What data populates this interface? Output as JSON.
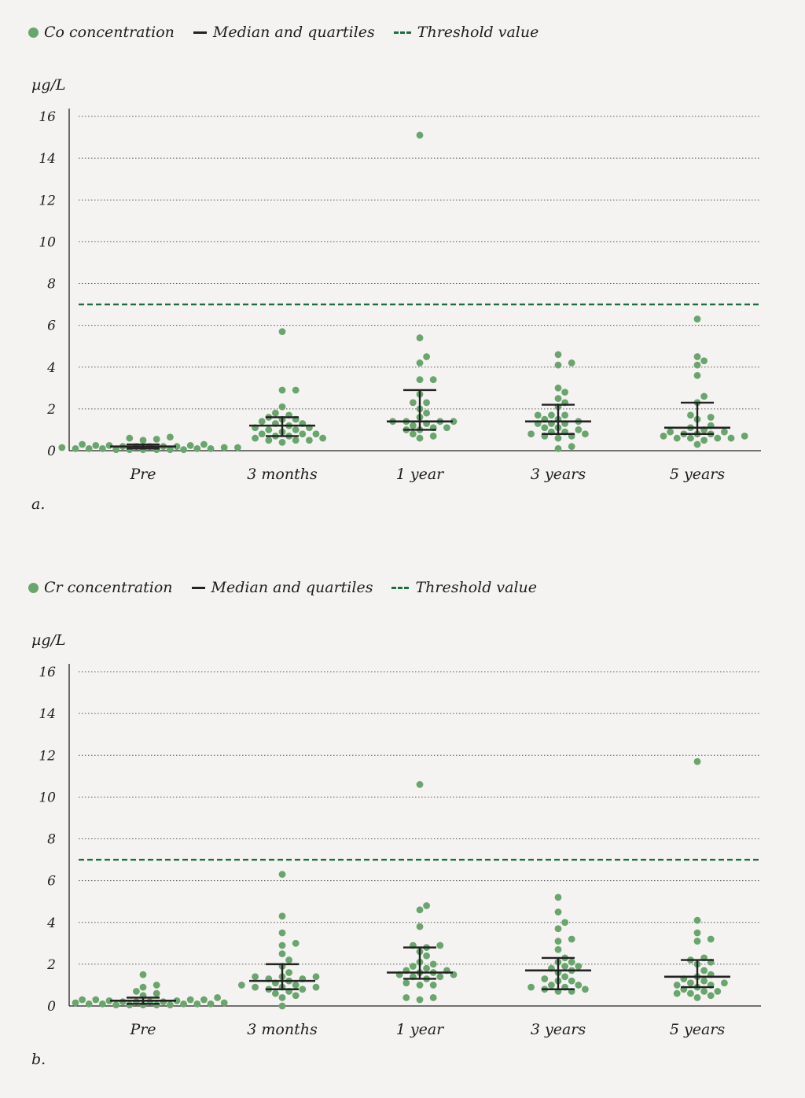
{
  "colors": {
    "dot": "#6aa56e",
    "median": "#222222",
    "threshold": "#1b6e3e",
    "grid": "#555555",
    "background": "#f4f3f1"
  },
  "chart_data": [
    {
      "type": "scatter",
      "panel_label": "a.",
      "legend": {
        "points": "Co concentration",
        "median": "Median and quartiles",
        "threshold": "Threshold value"
      },
      "ylabel": "µg/L",
      "ylim": [
        0,
        16
      ],
      "yticks": [
        "0",
        "2",
        "4",
        "6",
        "8",
        "10",
        "12",
        "14",
        "16"
      ],
      "threshold": 7,
      "categories": [
        "Pre",
        "3 months",
        "1 year",
        "3 years",
        "5 years"
      ],
      "groups": [
        {
          "name": "Pre",
          "median": 0.2,
          "q1": 0.1,
          "q3": 0.3,
          "points": [
            0.6,
            0.65,
            0.55,
            0.5,
            0.3,
            0.3,
            0.25,
            0.25,
            0.25,
            0.2,
            0.2,
            0.2,
            0.2,
            0.2,
            0.15,
            0.15,
            0.15,
            0.1,
            0.1,
            0.1,
            0.1,
            0.1,
            0.05,
            0.05,
            0.05,
            0.05,
            0.05,
            0.05
          ]
        },
        {
          "name": "3 months",
          "median": 1.2,
          "q1": 0.7,
          "q3": 1.6,
          "points": [
            5.7,
            2.9,
            2.9,
            2.1,
            1.8,
            1.7,
            1.6,
            1.5,
            1.5,
            1.4,
            1.3,
            1.3,
            1.2,
            1.1,
            1.1,
            1.0,
            1.0,
            0.9,
            0.8,
            0.8,
            0.8,
            0.7,
            0.7,
            0.6,
            0.6,
            0.5,
            0.5,
            0.5,
            0.4
          ]
        },
        {
          "name": "1 year",
          "median": 1.4,
          "q1": 1.0,
          "q3": 2.9,
          "points": [
            15.1,
            5.4,
            4.5,
            4.2,
            3.4,
            3.4,
            2.7,
            2.3,
            2.3,
            2.0,
            1.8,
            1.6,
            1.4,
            1.4,
            1.4,
            1.4,
            1.3,
            1.2,
            1.1,
            1.1,
            1.0,
            1.0,
            0.8,
            0.7,
            0.6
          ]
        },
        {
          "name": "3 years",
          "median": 1.4,
          "q1": 0.8,
          "q3": 2.2,
          "points": [
            4.6,
            4.2,
            4.1,
            3.0,
            2.8,
            2.5,
            2.3,
            2.1,
            1.7,
            1.7,
            1.7,
            1.5,
            1.5,
            1.4,
            1.3,
            1.3,
            1.3,
            1.1,
            1.1,
            1.0,
            0.9,
            0.9,
            0.8,
            0.8,
            0.7,
            0.7,
            0.6,
            0.2,
            0.1
          ]
        },
        {
          "name": "5 years",
          "median": 1.1,
          "q1": 0.8,
          "q3": 2.3,
          "points": [
            6.3,
            4.5,
            4.3,
            4.1,
            3.6,
            2.6,
            2.3,
            1.7,
            1.6,
            1.5,
            1.2,
            1.1,
            1.0,
            0.9,
            0.9,
            0.8,
            0.8,
            0.8,
            0.7,
            0.7,
            0.6,
            0.6,
            0.6,
            0.6,
            0.5,
            0.3
          ]
        }
      ]
    },
    {
      "type": "scatter",
      "panel_label": "b.",
      "legend": {
        "points": "Cr concentration",
        "median": "Median and quartiles",
        "threshold": "Threshold value"
      },
      "ylabel": "µg/L",
      "ylim": [
        0,
        16
      ],
      "yticks": [
        "0",
        "2",
        "4",
        "6",
        "8",
        "10",
        "12",
        "14",
        "16"
      ],
      "threshold": 7,
      "categories": [
        "Pre",
        "3 months",
        "1 year",
        "3 years",
        "5 years"
      ],
      "groups": [
        {
          "name": "Pre",
          "median": 0.25,
          "q1": 0.1,
          "q3": 0.4,
          "points": [
            1.5,
            1.0,
            0.9,
            0.7,
            0.6,
            0.5,
            0.4,
            0.3,
            0.3,
            0.3,
            0.3,
            0.25,
            0.25,
            0.2,
            0.2,
            0.2,
            0.2,
            0.15,
            0.15,
            0.1,
            0.1,
            0.1,
            0.1,
            0.1,
            0.05,
            0.05,
            0.05,
            0.05,
            0.05
          ]
        },
        {
          "name": "3 months",
          "median": 1.2,
          "q1": 0.8,
          "q3": 2.0,
          "points": [
            6.3,
            4.3,
            3.5,
            3.0,
            2.9,
            2.5,
            2.2,
            1.9,
            1.6,
            1.4,
            1.4,
            1.4,
            1.3,
            1.3,
            1.2,
            1.1,
            1.0,
            1.0,
            0.9,
            0.9,
            0.9,
            0.8,
            0.8,
            0.7,
            0.6,
            0.5,
            0.4,
            0.0
          ]
        },
        {
          "name": "1 year",
          "median": 1.6,
          "q1": 1.3,
          "q3": 2.8,
          "points": [
            10.6,
            4.8,
            4.6,
            3.8,
            2.9,
            2.9,
            2.8,
            2.6,
            2.4,
            2.1,
            2.0,
            1.9,
            1.8,
            1.7,
            1.7,
            1.6,
            1.6,
            1.5,
            1.5,
            1.4,
            1.4,
            1.3,
            1.1,
            1.0,
            1.0,
            0.4,
            0.4,
            0.3
          ]
        },
        {
          "name": "3 years",
          "median": 1.7,
          "q1": 0.8,
          "q3": 2.3,
          "points": [
            5.2,
            4.5,
            4.0,
            3.7,
            3.2,
            3.1,
            2.7,
            2.3,
            2.1,
            2.1,
            1.9,
            1.9,
            1.8,
            1.7,
            1.6,
            1.4,
            1.3,
            1.2,
            1.2,
            1.0,
            1.0,
            0.9,
            0.9,
            0.8,
            0.8,
            0.7,
            0.7
          ]
        },
        {
          "name": "5 years",
          "median": 1.4,
          "q1": 0.9,
          "q3": 2.2,
          "points": [
            11.7,
            4.1,
            3.5,
            3.2,
            3.1,
            2.3,
            2.2,
            2.1,
            2.0,
            1.7,
            1.5,
            1.4,
            1.3,
            1.2,
            1.1,
            1.1,
            1.0,
            1.0,
            0.9,
            0.8,
            0.7,
            0.7,
            0.6,
            0.6,
            0.5,
            0.4
          ]
        }
      ]
    }
  ]
}
